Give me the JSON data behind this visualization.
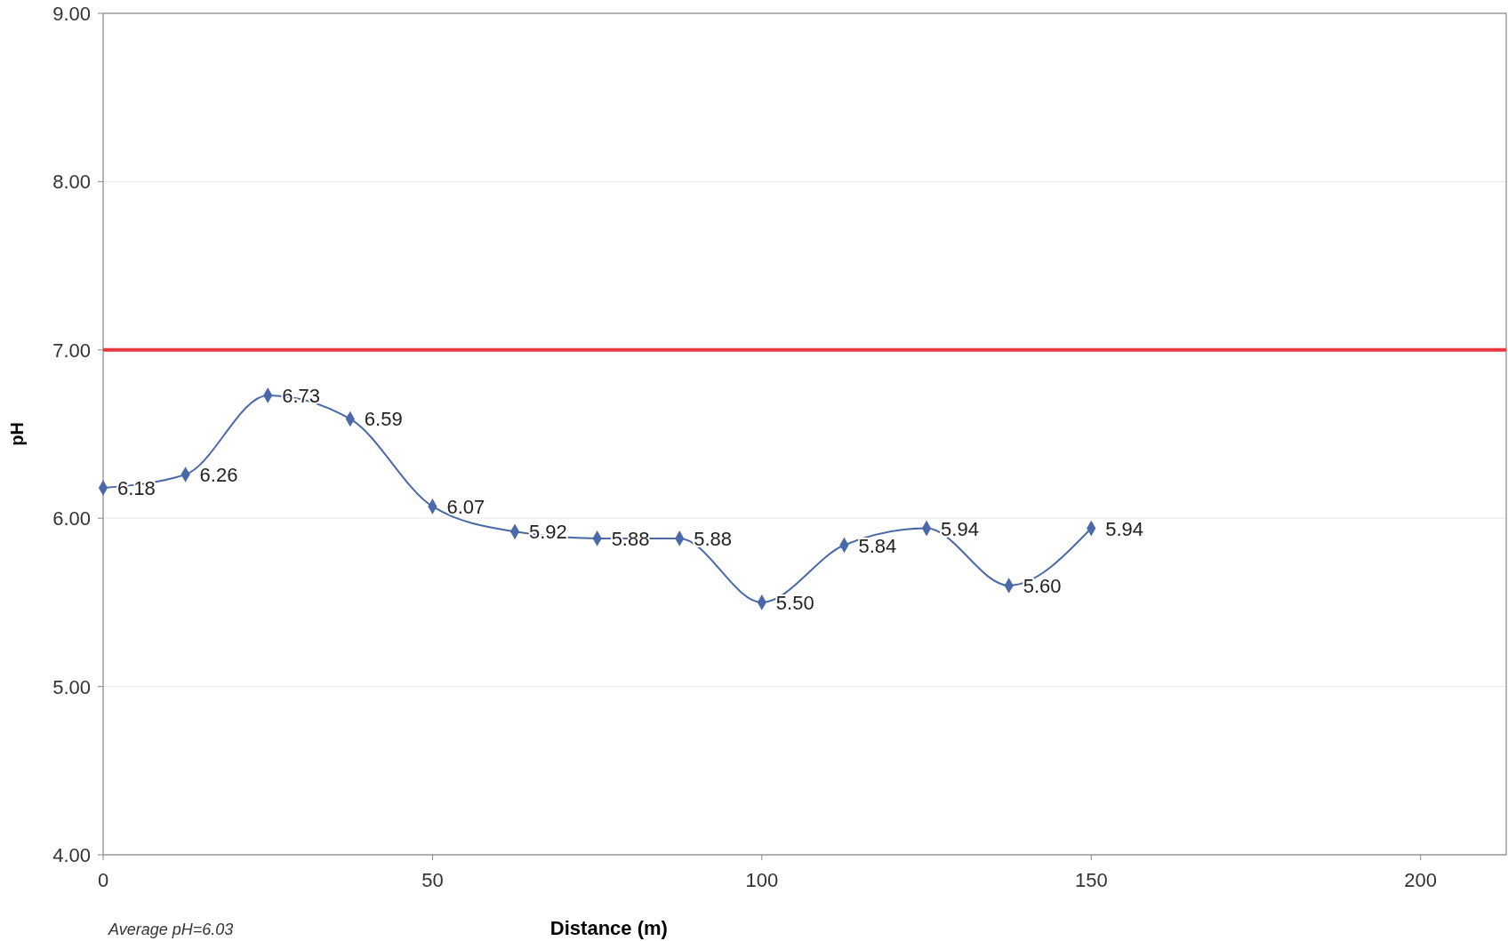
{
  "chart_data": {
    "type": "line",
    "xlabel": "Distance (m)",
    "ylabel": "pH",
    "x": [
      0,
      12.5,
      25,
      37.5,
      50,
      62.5,
      75,
      87.5,
      100,
      112.5,
      125,
      137.5,
      150
    ],
    "series": [
      {
        "color": "#4a69a8",
        "values": [
          6.18,
          6.26,
          6.73,
          6.59,
          6.07,
          5.92,
          5.88,
          5.88,
          5.5,
          5.84,
          5.94,
          5.6,
          5.94
        ],
        "value_labels": [
          "6.18",
          "6.26",
          "6.73",
          "6.59",
          "6.07",
          "5.92",
          "5.88",
          "5.88",
          "5.50",
          "5.84",
          "5.94",
          "5.60",
          "5.94"
        ]
      }
    ],
    "xlim": [
      0,
      213
    ],
    "xticks": [
      0,
      50,
      100,
      150,
      200
    ],
    "ylim": [
      4,
      9
    ],
    "yticks": [
      {
        "value": 4,
        "label": "4.00"
      },
      {
        "value": 5,
        "label": "5.00"
      },
      {
        "value": 6,
        "label": "6.00"
      },
      {
        "value": 7,
        "label": "7.00"
      },
      {
        "value": 8,
        "label": "8.00"
      },
      {
        "value": 9,
        "label": "9.00"
      }
    ],
    "ref_lines": [
      {
        "axis": "y",
        "value": 7,
        "color": "#e8383d"
      }
    ],
    "annotations": [
      "Average pH=6.03"
    ],
    "marker": "diamond",
    "grid": "y"
  }
}
